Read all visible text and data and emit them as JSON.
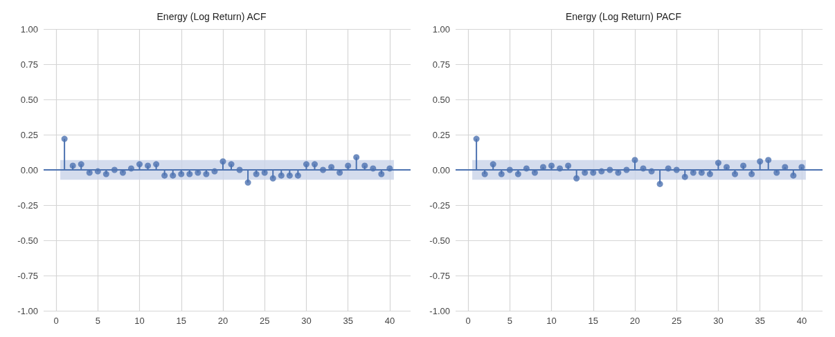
{
  "chart_data": [
    {
      "type": "lollipop",
      "title": "Energy (Log Return) ACF",
      "x": [
        1,
        2,
        3,
        4,
        5,
        6,
        7,
        8,
        9,
        10,
        11,
        12,
        13,
        14,
        15,
        16,
        17,
        18,
        19,
        20,
        21,
        22,
        23,
        24,
        25,
        26,
        27,
        28,
        29,
        30,
        31,
        32,
        33,
        34,
        35,
        36,
        37,
        38,
        39,
        40
      ],
      "series": [
        {
          "color": "#4c72b0",
          "values": [
            0.22,
            0.03,
            0.04,
            -0.02,
            -0.01,
            -0.03,
            0.0,
            -0.02,
            0.01,
            0.04,
            0.03,
            0.04,
            -0.04,
            -0.04,
            -0.03,
            -0.03,
            -0.02,
            -0.03,
            -0.01,
            0.06,
            0.04,
            0.0,
            -0.09,
            -0.03,
            -0.02,
            -0.06,
            -0.04,
            -0.04,
            -0.04,
            0.04,
            0.04,
            0.0,
            0.02,
            -0.02,
            0.03,
            0.09,
            0.03,
            0.01,
            -0.03,
            0.01
          ]
        }
      ],
      "xlim": [
        -1.5,
        42.5
      ],
      "xticks": [
        0,
        5,
        10,
        15,
        20,
        25,
        30,
        35,
        40
      ],
      "ylim": [
        -1,
        1
      ],
      "yticks": [
        {
          "value": -1,
          "label": "-1.00"
        },
        -0.75,
        {
          "value": -0.5,
          "label": "-0.50"
        },
        -0.25,
        {
          "value": 0,
          "label": "0.00"
        },
        0.25,
        {
          "value": 0.5,
          "label": "0.50"
        },
        0.75,
        {
          "value": 1,
          "label": "1.00"
        }
      ],
      "ref_lines": [
        {
          "axis": "y",
          "value": 0,
          "color": "#4c72b0"
        }
      ],
      "bands": [
        {
          "axis": "y",
          "from": -0.07,
          "to": 0.07,
          "color": "#c9d3e8"
        }
      ],
      "grid": true,
      "marker": "circle"
    },
    {
      "type": "lollipop",
      "title": "Energy (Log Return) PACF",
      "x": [
        1,
        2,
        3,
        4,
        5,
        6,
        7,
        8,
        9,
        10,
        11,
        12,
        13,
        14,
        15,
        16,
        17,
        18,
        19,
        20,
        21,
        22,
        23,
        24,
        25,
        26,
        27,
        28,
        29,
        30,
        31,
        32,
        33,
        34,
        35,
        36,
        37,
        38,
        39,
        40
      ],
      "series": [
        {
          "color": "#4c72b0",
          "values": [
            0.22,
            -0.03,
            0.04,
            -0.03,
            0.0,
            -0.03,
            0.01,
            -0.02,
            0.02,
            0.03,
            0.01,
            0.03,
            -0.06,
            -0.02,
            -0.02,
            -0.01,
            0.0,
            -0.02,
            0.0,
            0.07,
            0.01,
            -0.01,
            -0.1,
            0.01,
            0.0,
            -0.05,
            -0.02,
            -0.02,
            -0.03,
            0.05,
            0.02,
            -0.03,
            0.03,
            -0.03,
            0.06,
            0.07,
            -0.02,
            0.02,
            -0.04,
            0.02
          ]
        }
      ],
      "xlim": [
        -1.5,
        42.5
      ],
      "xticks": [
        0,
        5,
        10,
        15,
        20,
        25,
        30,
        35,
        40
      ],
      "ylim": [
        -1,
        1
      ],
      "yticks": [
        {
          "value": -1,
          "label": "-1.00"
        },
        -0.75,
        {
          "value": -0.5,
          "label": "-0.50"
        },
        -0.25,
        {
          "value": 0,
          "label": "0.00"
        },
        0.25,
        {
          "value": 0.5,
          "label": "0.50"
        },
        0.75,
        {
          "value": 1,
          "label": "1.00"
        }
      ],
      "ref_lines": [
        {
          "axis": "y",
          "value": 0,
          "color": "#4c72b0"
        }
      ],
      "bands": [
        {
          "axis": "y",
          "from": -0.07,
          "to": 0.07,
          "color": "#c9d3e8"
        }
      ],
      "grid": true,
      "marker": "circle"
    }
  ]
}
